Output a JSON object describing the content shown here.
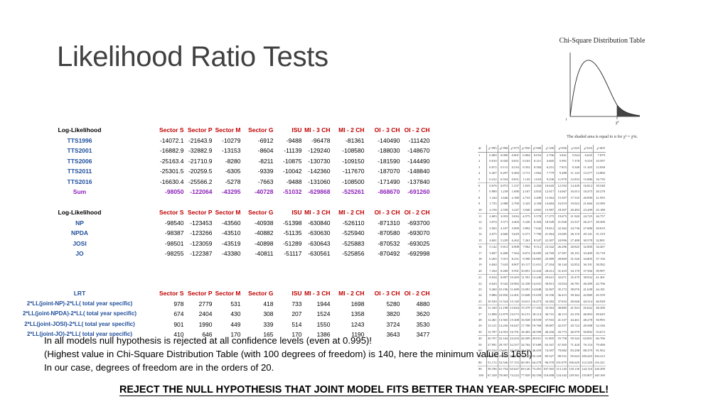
{
  "slide": {
    "title": "Likelihood Ratio Tests"
  },
  "table1": {
    "header_label": "Log-Likelihood",
    "columns": [
      "Sector S",
      "Sector P",
      "Sector M",
      "Sector G",
      "ISU",
      "MI - 3 CH",
      "MI - 2 CH",
      "OI - 3 CH",
      "OI - 2 CH"
    ],
    "rows": [
      {
        "label": "TTS1996",
        "values": [
          "-14072.1",
          "-21643.9",
          "-10279",
          "-6912",
          "-9488",
          "-96478",
          "-81361",
          "-140490",
          "-111420"
        ]
      },
      {
        "label": "TTS2001",
        "values": [
          "-16882.9",
          "-32882.9",
          "-13153",
          "-8604",
          "-11139",
          "-129240",
          "-108580",
          "-188030",
          "-148670"
        ]
      },
      {
        "label": "TTS2006",
        "values": [
          "-25163.4",
          "-21710.9",
          "-8280",
          "-8211",
          "-10875",
          "-130730",
          "-109150",
          "-181590",
          "-144490"
        ]
      },
      {
        "label": "TTS2011",
        "values": [
          "-25301.5",
          "-20259.5",
          "-6305",
          "-9339",
          "-10042",
          "-142360",
          "-117670",
          "-187070",
          "-148840"
        ]
      },
      {
        "label": "TTS2016",
        "values": [
          "-16630.4",
          "-25566.2",
          "-5278",
          "-7663",
          "-9488",
          "-131060",
          "-108500",
          "-171490",
          "-137840"
        ]
      }
    ],
    "sum": {
      "label": "Sum",
      "values": [
        "-98050",
        "-122064",
        "-43295",
        "-40728",
        "-51032",
        "-629868",
        "-525261",
        "-868670",
        "-691260"
      ]
    }
  },
  "table2": {
    "header_label": "Log-Likelihood",
    "columns": [
      "Sector S",
      "Sector P",
      "Sector M",
      "Sector G",
      "ISU",
      "MI - 3 CH",
      "MI - 2 CH",
      "OI - 3 CH",
      "OI - 2 CH"
    ],
    "rows": [
      {
        "label": "NP",
        "values": [
          "-98540",
          "-123453",
          "-43560",
          "-40938",
          "-51398",
          "-630840",
          "-526110",
          "-871310",
          "-693700"
        ]
      },
      {
        "label": "NPDA",
        "values": [
          "-98387",
          "-123266",
          "-43510",
          "-40882",
          "-51135",
          "-630630",
          "-525940",
          "-870580",
          "-693070"
        ]
      },
      {
        "label": "JOSI",
        "values": [
          "-98501",
          "-123059",
          "-43519",
          "-40898",
          "-51289",
          "-630643",
          "-525883",
          "-870532",
          "-693025"
        ]
      },
      {
        "label": "JO",
        "values": [
          "-98255",
          "-122387",
          "-43380",
          "-40811",
          "-51117",
          "-630561",
          "-525856",
          "-870492",
          "-692998"
        ]
      }
    ]
  },
  "table3": {
    "header_label": "LRT",
    "columns": [
      "Sector S",
      "Sector P",
      "Sector M",
      "Sector G",
      "ISU",
      "MI - 3 CH",
      "MI - 2 CH",
      "OI - 3 CH",
      "OI - 2 CH"
    ],
    "rows": [
      {
        "label": "2*LL(joint-NP)-2*LL( total year specific)",
        "values": [
          "978",
          "2779",
          "531",
          "418",
          "733",
          "1944",
          "1698",
          "5280",
          "4880"
        ]
      },
      {
        "label": "2*LL(joint-NPDA)-2*LL( total year specific)",
        "values": [
          "674",
          "2404",
          "430",
          "308",
          "207",
          "1524",
          "1358",
          "3820",
          "3620"
        ]
      },
      {
        "label": "2*LL(joint-JOSI)-2*LL( total year specific)",
        "values": [
          "901",
          "1990",
          "449",
          "339",
          "514",
          "1550",
          "1243",
          "3724",
          "3530"
        ]
      },
      {
        "label": "2*LL(joint-JO)-2*LL( total year specific)",
        "values": [
          "410",
          "646",
          "170",
          "165",
          "170",
          "1386",
          "1190",
          "3643",
          "3477"
        ]
      }
    ]
  },
  "chi_square": {
    "title": "Chi-Square Distribution Table",
    "caption": "The shaded area is equal to α for χ² = χ²α.",
    "headers": [
      "df",
      "χ².995",
      "χ².990",
      "χ².975",
      "χ².950",
      "χ².900",
      "χ².100",
      "χ².050",
      "χ².025",
      "χ².010",
      "χ².005"
    ],
    "rows": [
      [
        "1",
        "0.000",
        "0.000",
        "0.001",
        "0.004",
        "0.016",
        "2.706",
        "3.841",
        "5.024",
        "6.635",
        "7.879"
      ],
      [
        "2",
        "0.010",
        "0.020",
        "0.051",
        "0.103",
        "0.211",
        "4.605",
        "5.991",
        "7.378",
        "9.210",
        "10.597"
      ],
      [
        "3",
        "0.072",
        "0.115",
        "0.216",
        "0.352",
        "0.584",
        "6.251",
        "7.815",
        "9.348",
        "11.345",
        "12.838"
      ],
      [
        "4",
        "0.207",
        "0.297",
        "0.484",
        "0.711",
        "1.064",
        "7.779",
        "9.488",
        "11.143",
        "13.277",
        "14.860"
      ],
      [
        "5",
        "0.412",
        "0.554",
        "0.831",
        "1.145",
        "1.610",
        "9.236",
        "11.070",
        "12.833",
        "15.086",
        "16.750"
      ],
      [
        "6",
        "0.676",
        "0.872",
        "1.237",
        "1.635",
        "2.204",
        "10.645",
        "12.592",
        "14.449",
        "16.812",
        "18.548"
      ],
      [
        "7",
        "0.989",
        "1.239",
        "1.690",
        "2.167",
        "2.833",
        "12.017",
        "14.067",
        "16.013",
        "18.475",
        "20.278"
      ],
      [
        "8",
        "1.344",
        "1.646",
        "2.180",
        "2.733",
        "3.490",
        "13.362",
        "15.507",
        "17.535",
        "20.090",
        "21.955"
      ],
      [
        "9",
        "1.735",
        "2.088",
        "2.700",
        "3.325",
        "4.168",
        "14.684",
        "16.919",
        "19.023",
        "21.666",
        "23.589"
      ],
      [
        "10",
        "2.156",
        "2.558",
        "3.247",
        "3.940",
        "4.865",
        "15.987",
        "18.307",
        "20.483",
        "23.209",
        "25.188"
      ],
      [
        "11",
        "2.603",
        "3.053",
        "3.816",
        "4.575",
        "5.578",
        "17.275",
        "19.675",
        "21.920",
        "24.725",
        "26.757"
      ],
      [
        "12",
        "3.074",
        "3.571",
        "4.404",
        "5.226",
        "6.304",
        "18.549",
        "21.026",
        "23.337",
        "26.217",
        "28.300"
      ],
      [
        "13",
        "3.565",
        "4.107",
        "5.009",
        "5.892",
        "7.042",
        "19.812",
        "22.362",
        "24.736",
        "27.688",
        "29.819"
      ],
      [
        "14",
        "4.075",
        "4.660",
        "5.629",
        "6.571",
        "7.790",
        "21.064",
        "23.685",
        "26.119",
        "29.141",
        "31.319"
      ],
      [
        "15",
        "4.601",
        "5.229",
        "6.262",
        "7.261",
        "8.547",
        "22.307",
        "24.996",
        "27.488",
        "30.578",
        "32.801"
      ],
      [
        "16",
        "5.142",
        "5.812",
        "6.908",
        "7.962",
        "9.312",
        "23.542",
        "26.296",
        "28.845",
        "32.000",
        "34.267"
      ],
      [
        "17",
        "5.697",
        "6.408",
        "7.564",
        "8.672",
        "10.085",
        "24.769",
        "27.587",
        "30.191",
        "33.409",
        "35.718"
      ],
      [
        "18",
        "6.265",
        "7.015",
        "8.231",
        "9.390",
        "10.865",
        "25.989",
        "28.869",
        "31.526",
        "34.805",
        "37.156"
      ],
      [
        "19",
        "6.844",
        "7.633",
        "8.907",
        "10.117",
        "11.651",
        "27.204",
        "30.144",
        "32.852",
        "36.191",
        "38.582"
      ],
      [
        "20",
        "7.434",
        "8.260",
        "9.591",
        "10.851",
        "12.443",
        "28.412",
        "31.410",
        "34.170",
        "37.566",
        "39.997"
      ],
      [
        "21",
        "8.034",
        "8.897",
        "10.283",
        "11.591",
        "13.240",
        "29.615",
        "32.671",
        "35.479",
        "38.932",
        "41.401"
      ],
      [
        "22",
        "8.643",
        "9.542",
        "10.982",
        "12.338",
        "14.041",
        "30.813",
        "33.924",
        "36.781",
        "40.289",
        "42.796"
      ],
      [
        "23",
        "9.260",
        "10.196",
        "11.689",
        "13.091",
        "14.848",
        "32.007",
        "35.172",
        "38.076",
        "41.638",
        "44.181"
      ],
      [
        "24",
        "9.886",
        "10.856",
        "12.401",
        "13.848",
        "15.659",
        "33.196",
        "36.415",
        "39.364",
        "42.980",
        "45.559"
      ],
      [
        "25",
        "10.520",
        "11.524",
        "13.120",
        "14.611",
        "16.473",
        "34.382",
        "37.652",
        "40.646",
        "44.314",
        "46.928"
      ],
      [
        "26",
        "11.160",
        "12.198",
        "13.844",
        "15.379",
        "17.292",
        "35.563",
        "38.885",
        "41.923",
        "45.642",
        "48.290"
      ],
      [
        "27",
        "11.808",
        "12.879",
        "14.573",
        "16.151",
        "18.114",
        "36.741",
        "40.113",
        "43.195",
        "46.963",
        "49.645"
      ],
      [
        "28",
        "12.461",
        "13.565",
        "15.308",
        "16.928",
        "18.939",
        "37.916",
        "41.337",
        "44.461",
        "48.278",
        "50.993"
      ],
      [
        "29",
        "13.121",
        "14.256",
        "16.047",
        "17.708",
        "19.768",
        "39.087",
        "42.557",
        "45.722",
        "49.588",
        "52.336"
      ],
      [
        "30",
        "13.787",
        "14.953",
        "16.791",
        "18.493",
        "20.599",
        "40.256",
        "43.773",
        "46.979",
        "50.892",
        "53.672"
      ],
      [
        "40",
        "20.707",
        "22.164",
        "24.433",
        "26.509",
        "29.051",
        "51.805",
        "55.758",
        "59.342",
        "63.691",
        "66.766"
      ],
      [
        "50",
        "27.991",
        "29.707",
        "32.357",
        "34.764",
        "37.689",
        "63.167",
        "67.505",
        "71.420",
        "76.154",
        "79.490"
      ],
      [
        "60",
        "35.534",
        "37.485",
        "40.482",
        "43.188",
        "46.459",
        "74.397",
        "79.082",
        "83.298",
        "88.379",
        "91.952"
      ],
      [
        "70",
        "43.275",
        "45.442",
        "48.758",
        "51.739",
        "55.329",
        "85.527",
        "90.531",
        "95.023",
        "100.425",
        "104.215"
      ],
      [
        "80",
        "51.172",
        "53.540",
        "57.153",
        "60.391",
        "64.278",
        "96.578",
        "101.879",
        "106.629",
        "112.329",
        "116.321"
      ],
      [
        "90",
        "59.196",
        "61.754",
        "65.647",
        "69.126",
        "73.291",
        "107.565",
        "113.145",
        "118.136",
        "124.116",
        "128.299"
      ],
      [
        "100",
        "67.328",
        "70.065",
        "74.222",
        "77.929",
        "82.358",
        "118.498",
        "124.342",
        "129.561",
        "135.807",
        "140.169"
      ]
    ]
  },
  "notes": [
    "In all models null hypothesis is rejected at all confidence levels (even at 0.995)!",
    "(Highest value in Chi-Square Distribution Table (with 100 degrees of freedom) is 140, here the minimum value is 165!)",
    "In our case, degrees of freedom are in the orders of 20."
  ],
  "conclusion": "REJECT THE NULL HYPOTHESIS THAT JOINT MODEL FITS BETTER THAN YEAR-SPECIFIC MODEL!"
}
